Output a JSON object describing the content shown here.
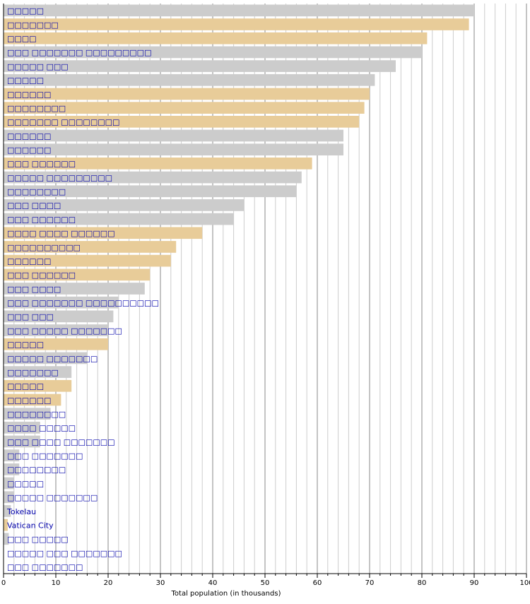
{
  "chart_data": {
    "type": "bar",
    "orientation": "horizontal",
    "title": "",
    "xlabel": "Total population (in thousands)",
    "ylabel": "",
    "xlim": [
      0,
      100
    ],
    "xticks": [
      "0",
      "10",
      "20",
      "30",
      "40",
      "50",
      "60",
      "70",
      "80",
      "90",
      "100"
    ],
    "grid": true,
    "colors": {
      "dependency": "#cccccc",
      "sovereign": "#e8cc99",
      "label": "#0000aa"
    },
    "categories": [
      "□□□□□",
      "□□□□□□□",
      "□□□□",
      "□□□ □□□□□□□ □□□□□□□□□",
      "□□□□□ □□□",
      "□□□□□",
      "□□□□□□",
      "□□□□□□□□",
      "□□□□□□□ □□□□□□□□",
      "□□□□□□",
      "□□□□□□",
      "□□□ □□□□□□",
      "□□□□□ □□□□□□□□□",
      "□□□□□□□□",
      "□□□ □□□□",
      "□□□ □□□□□□",
      "□□□□ □□□□ □□□□□□",
      "□□□□□□□□□□",
      "□□□□□□",
      "□□□ □□□□□□",
      "□□□ □□□□",
      "□□□ □□□□□□□ □□□□□□□□□□",
      "□□□ □□□",
      "□□□ □□□□□ □□□□□□□",
      "□□□□□",
      "□□□□□ □□□□□□□",
      "□□□□□□□",
      "□□□□□",
      "□□□□□□",
      "□□□□□□□□",
      "□□□□ □□□□□",
      "□□□ □□□□ □□□□□□□",
      "□□□ □□□□□□□",
      "□□□□□□□□",
      "□□□□□",
      "□□□□□ □□□□□□□",
      "Tokelau",
      "Vatican City",
      "□□□ □□□□□",
      "□□□□□ □□□ □□□□□□□",
      "□□□ □□□□□□□"
    ],
    "values": [
      90,
      89,
      81,
      80,
      75,
      71,
      70,
      69,
      68,
      65,
      65,
      59,
      57,
      56,
      46,
      44,
      38,
      33,
      32,
      28,
      27,
      22,
      21,
      20,
      20,
      16,
      13,
      13,
      11,
      9,
      7,
      7,
      3,
      3,
      2,
      2,
      1.4,
      0.8,
      1,
      0,
      0
    ],
    "groups": [
      "d",
      "s",
      "s",
      "d",
      "d",
      "d",
      "s",
      "s",
      "s",
      "d",
      "d",
      "s",
      "d",
      "d",
      "d",
      "d",
      "s",
      "s",
      "s",
      "s",
      "d",
      "d",
      "d",
      "d",
      "s",
      "d",
      "d",
      "s",
      "s",
      "d",
      "d",
      "d",
      "d",
      "d",
      "d",
      "d",
      "d",
      "s",
      "d",
      "d",
      "d"
    ]
  }
}
